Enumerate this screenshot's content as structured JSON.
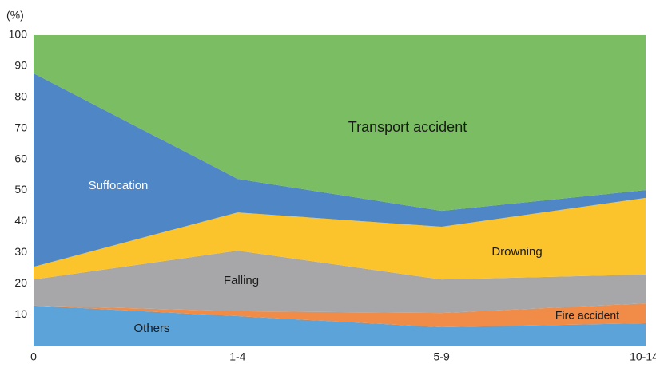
{
  "chart_data": {
    "type": "stacked_area",
    "y_label": "(%)",
    "categories": [
      "0",
      "1-4",
      "5-9",
      "10-14"
    ],
    "ylim": [
      0,
      100
    ],
    "yticks": [
      10,
      20,
      30,
      40,
      50,
      60,
      70,
      80,
      90,
      100
    ],
    "series": [
      {
        "name": "Others",
        "color": "#5ba3d9",
        "values": [
          12.9,
          9.5,
          5.9,
          7.2
        ]
      },
      {
        "name": "Fire accident",
        "color": "#f08c47",
        "values": [
          0,
          1.6,
          4.6,
          6.4
        ]
      },
      {
        "name": "Falling",
        "color": "#a7a7a9",
        "values": [
          8.4,
          19.5,
          10.8,
          9.3
        ]
      },
      {
        "name": "Drowning",
        "color": "#fcc42c",
        "values": [
          4.1,
          12.3,
          17.0,
          24.7
        ]
      },
      {
        "name": "Suffocation",
        "color": "#4f86c6",
        "values": [
          62.3,
          10.8,
          5.1,
          2.5
        ]
      },
      {
        "name": "Transport accident",
        "color": "#7bbd62",
        "values": [
          12.3,
          46.3,
          56.6,
          49.9
        ]
      }
    ]
  }
}
